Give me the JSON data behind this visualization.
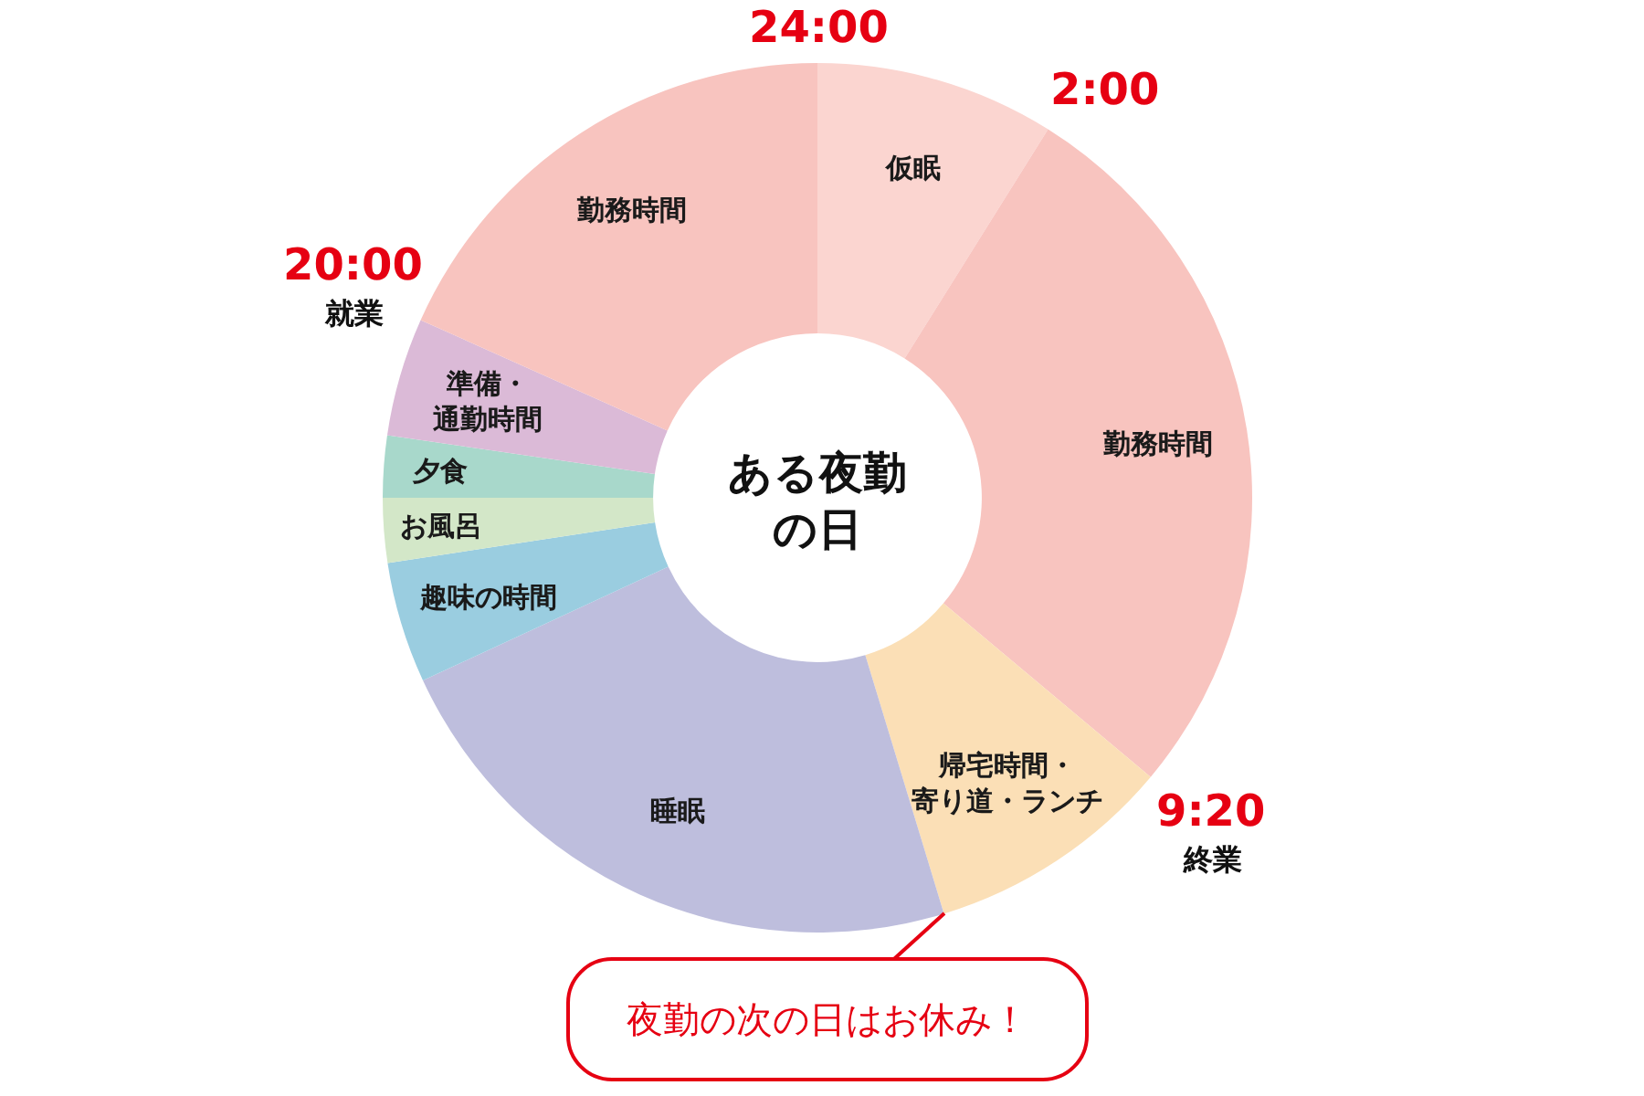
{
  "chart_data": {
    "type": "donut",
    "title": "ある夜勤の日",
    "categories": [
      "仮眠",
      "勤務時間",
      "帰宅時間・寄り道・ランチ",
      "睡眠",
      "趣味の時間",
      "お風呂",
      "夕食",
      "準備・通勤時間",
      "勤務時間"
    ],
    "values": [
      8.9,
      27.2,
      9.2,
      22.8,
      4.5,
      2.4,
      2.3,
      4.4,
      18.3
    ],
    "colors": [
      "#fbd5d0",
      "#f8c4bf",
      "#fbdfb6",
      "#bebedd",
      "#9acde0",
      "#d3e7c8",
      "#a8d8cb",
      "#dbbad7",
      "#f8c4bf"
    ],
    "annotations": [
      "24:00",
      "2:00",
      "9:20",
      "終業",
      "20:00",
      "就業",
      "夜勤の次の日はお休み！"
    ]
  }
}
